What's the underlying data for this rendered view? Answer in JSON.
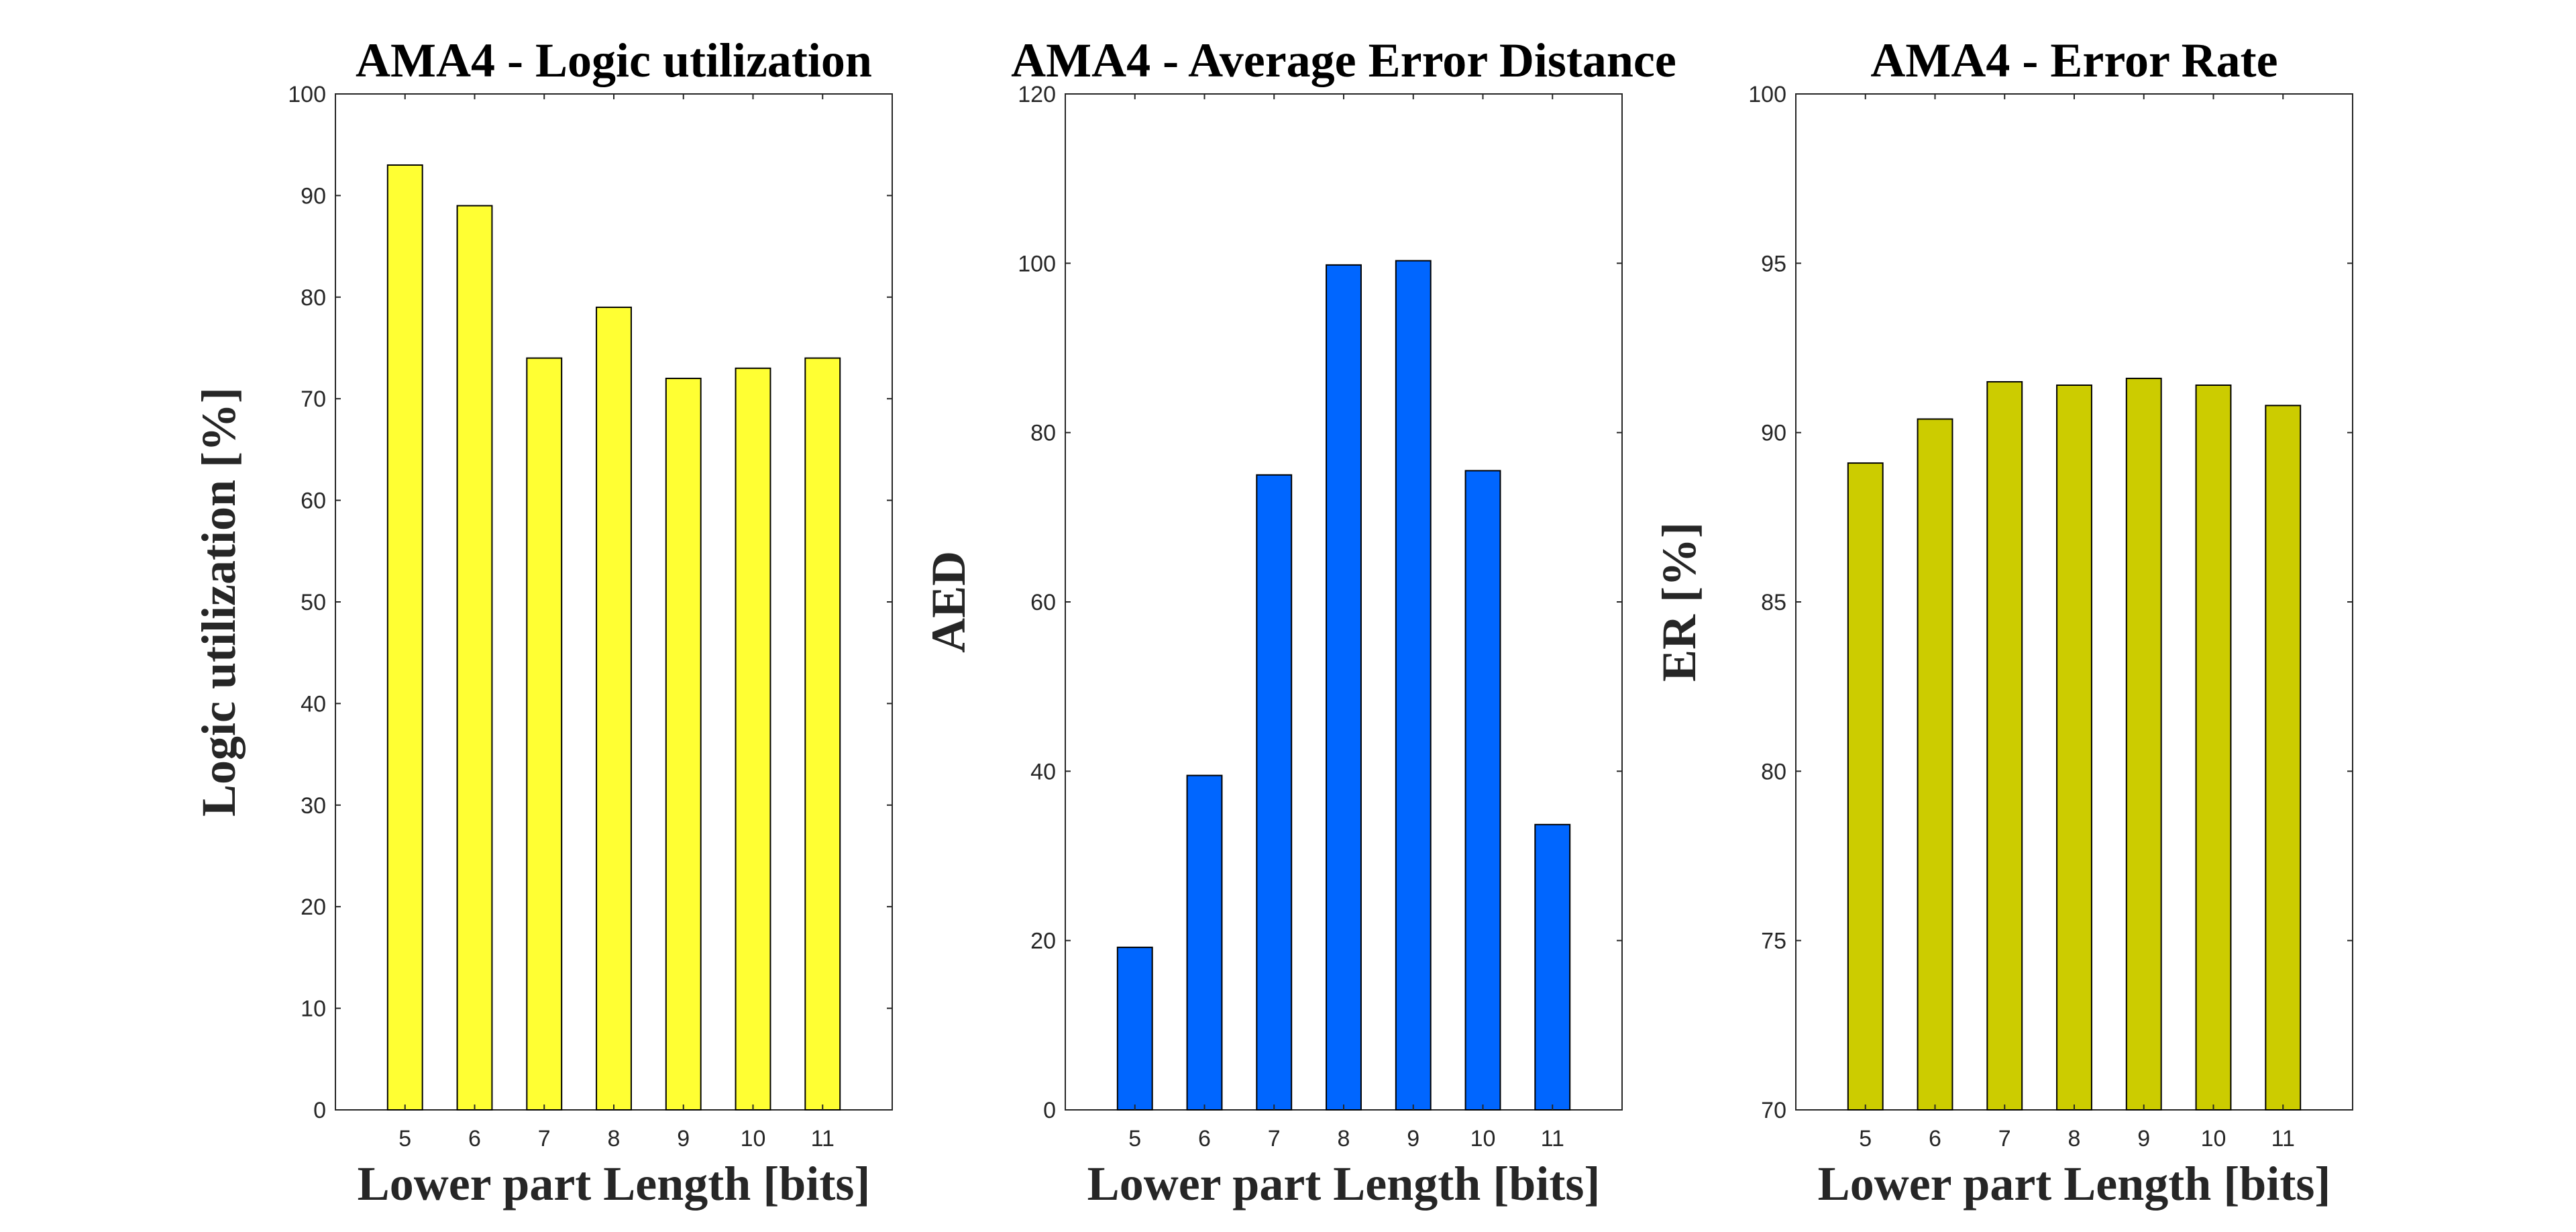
{
  "chart_data": [
    {
      "type": "bar",
      "title": "AMA4 - Logic utilization",
      "xlabel": "Lower part Length [bits]",
      "ylabel": "Logic utilization [%]",
      "categories": [
        "5",
        "6",
        "7",
        "8",
        "9",
        "10",
        "11"
      ],
      "values": [
        93,
        89,
        74,
        79,
        72,
        73,
        74
      ],
      "ylim": [
        0,
        100
      ],
      "yticks": [
        0,
        10,
        20,
        30,
        40,
        50,
        60,
        70,
        80,
        90,
        100
      ],
      "color": "#ffff33",
      "grid": false
    },
    {
      "type": "bar",
      "title": "AMA4 - Average Error Distance",
      "xlabel": "Lower part Length [bits]",
      "ylabel": "AED",
      "categories": [
        "5",
        "6",
        "7",
        "8",
        "9",
        "10",
        "11"
      ],
      "values": [
        19.2,
        39.5,
        75,
        99.8,
        100.3,
        75.5,
        33.7
      ],
      "ylim": [
        0,
        120
      ],
      "yticks": [
        0,
        20,
        40,
        60,
        80,
        100,
        120
      ],
      "color": "#0066ff",
      "grid": false
    },
    {
      "type": "bar",
      "title": "AMA4 - Error Rate",
      "xlabel": "Lower part Length [bits]",
      "ylabel": "ER [%]",
      "categories": [
        "5",
        "6",
        "7",
        "8",
        "9",
        "10",
        "11"
      ],
      "values": [
        89.1,
        90.4,
        91.5,
        91.4,
        91.6,
        91.4,
        90.8
      ],
      "ylim": [
        70,
        100
      ],
      "yticks": [
        70,
        75,
        80,
        85,
        90,
        95,
        100
      ],
      "color": "#cccc00",
      "grid": false
    }
  ]
}
